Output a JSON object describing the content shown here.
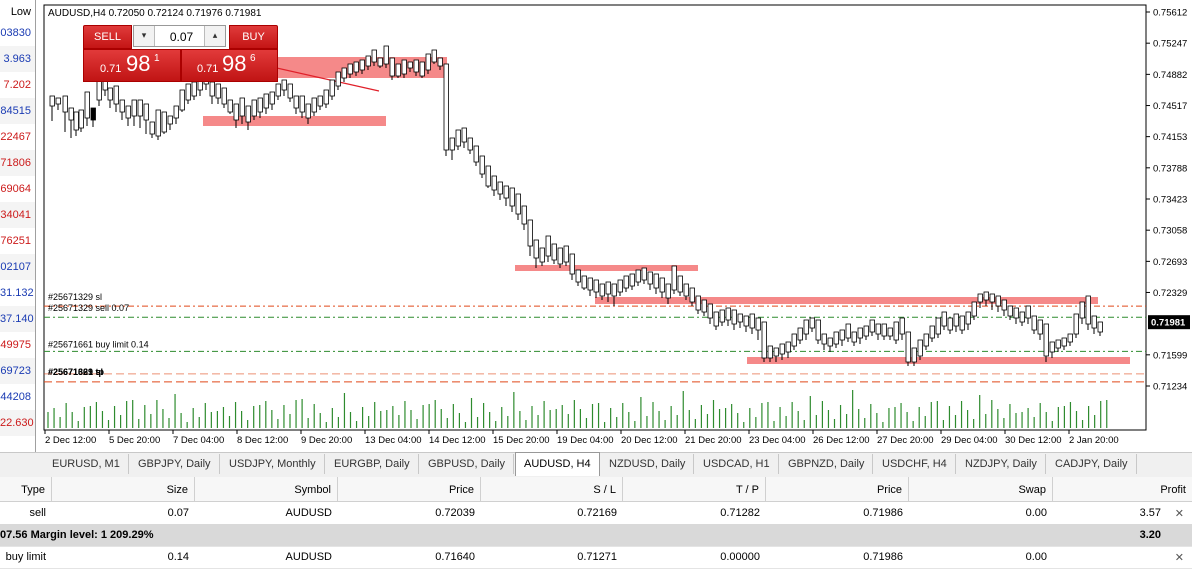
{
  "left_panel": {
    "header": "Low",
    "cells": [
      {
        "text": "03830",
        "color": "#1a3bb3"
      },
      {
        "text": "3.963",
        "color": "#1a3bb3"
      },
      {
        "text": "7.202",
        "color": "#cc1a1a"
      },
      {
        "text": "84515",
        "color": "#1a3bb3"
      },
      {
        "text": "22467",
        "color": "#cc1a1a"
      },
      {
        "text": "71806",
        "color": "#cc1a1a"
      },
      {
        "text": "69064",
        "color": "#cc1a1a"
      },
      {
        "text": "34041",
        "color": "#cc1a1a"
      },
      {
        "text": "76251",
        "color": "#cc1a1a"
      },
      {
        "text": "02107",
        "color": "#1a3bb3"
      },
      {
        "text": "31.132",
        "color": "#1a3bb3"
      },
      {
        "text": "37.140",
        "color": "#1a3bb3"
      },
      {
        "text": "49975",
        "color": "#cc1a1a"
      },
      {
        "text": "69723",
        "color": "#1a3bb3"
      },
      {
        "text": "44208",
        "color": "#1a3bb3"
      },
      {
        "text": "22.630",
        "color": "#cc1a1a"
      }
    ]
  },
  "chart": {
    "title": "AUDUSD,H4  0.72050 0.72124 0.71976 0.71981",
    "current_price": "0.71981",
    "price_axis": [
      "0.75612",
      "0.75247",
      "0.74882",
      "0.74517",
      "0.74153",
      "0.73788",
      "0.73423",
      "0.73058",
      "0.72693",
      "0.72329",
      "0.71599",
      "0.71234"
    ],
    "price_axis_values": [
      0.75612,
      0.75247,
      0.74882,
      0.74517,
      0.74153,
      0.73788,
      0.73423,
      0.73058,
      0.72693,
      0.72329,
      0.71599,
      0.71234
    ],
    "time_axis": [
      "2 Dec 12:00",
      "5 Dec 20:00",
      "7 Dec 04:00",
      "8 Dec 12:00",
      "9 Dec 20:00",
      "13 Dec 04:00",
      "14 Dec 12:00",
      "15 Dec 20:00",
      "19 Dec 04:00",
      "20 Dec 12:00",
      "21 Dec 20:00",
      "23 Dec 04:00",
      "26 Dec 12:00",
      "27 Dec 20:00",
      "29 Dec 04:00",
      "30 Dec 12:00",
      "2 Jan 20:00"
    ],
    "order_labels": {
      "sl": "#25671329 sl",
      "sell": "#25671329 sell 0.07",
      "buy_limit": "#25671661 buy limit 0.14",
      "tp": "#25671329 tp",
      "tp_overlap": "#25671661 sl"
    },
    "order_levels": {
      "sl": 0.72169,
      "sell": 0.72039,
      "buy_limit": 0.7164,
      "tp": 0.71282
    },
    "zone_color": "#f47c7c",
    "bull_color": "#ffffff",
    "bear_color": "#000000",
    "volume_color": "#2e8b2e",
    "sl_color": "#e0491a",
    "entry_color": "#2e8b2e"
  },
  "trade_panel": {
    "sell_label": "SELL",
    "buy_label": "BUY",
    "lot": "0.07",
    "minus_icon": "▾",
    "plus_icon": "▴",
    "sell_price_prefix": "0.71",
    "sell_price_big": "98",
    "sell_price_sup": "1",
    "buy_price_prefix": "0.71",
    "buy_price_big": "98",
    "buy_price_sup": "6"
  },
  "tabs": [
    {
      "label": "EURUSD, M1",
      "active": false
    },
    {
      "label": "GBPJPY, Daily",
      "active": false
    },
    {
      "label": "USDJPY, Monthly",
      "active": false
    },
    {
      "label": "EURGBP, Daily",
      "active": false
    },
    {
      "label": "GBPUSD, Daily",
      "active": false
    },
    {
      "label": "AUDUSD, H4",
      "active": true
    },
    {
      "label": "NZDUSD, Daily",
      "active": false
    },
    {
      "label": "USDCAD, H1",
      "active": false
    },
    {
      "label": "GBPNZD, Daily",
      "active": false
    },
    {
      "label": "USDCHF, H4",
      "active": false
    },
    {
      "label": "NZDJPY, Daily",
      "active": false
    },
    {
      "label": "CADJPY, Daily",
      "active": false
    }
  ],
  "terminal": {
    "headers": [
      "Type",
      "Size",
      "Symbol",
      "Price",
      "S / L",
      "T / P",
      "Price",
      "Swap",
      "Profit"
    ],
    "rows": [
      {
        "type": "sell",
        "size": "0.07",
        "symbol": "AUDUSD",
        "price": "0.72039",
        "sl": "0.72169",
        "tp": "0.71282",
        "cur": "0.71986",
        "swap": "0.00",
        "profit": "3.57"
      },
      {
        "type": "buy limit",
        "size": "0.14",
        "symbol": "AUDUSD",
        "price": "0.71640",
        "sl": "0.71271",
        "tp": "0.00000",
        "cur": "0.71986",
        "swap": "0.00",
        "profit": ""
      }
    ],
    "margin_text": "07.56  Margin level: 1 209.29%",
    "margin_profit": "3.20",
    "close_icon": "✕"
  }
}
